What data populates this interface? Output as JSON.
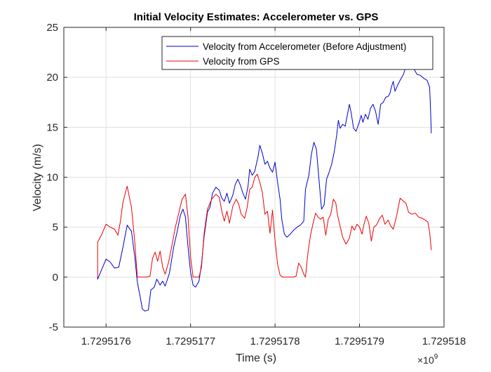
{
  "chart_data": {
    "type": "line",
    "title": "Initial Velocity Estimates: Accelerometer vs. GPS",
    "xlabel": "Time (s)",
    "ylabel": "Velocity (m/s)",
    "x_exponent_label": "×10",
    "x_exponent_power": "9",
    "xlim": [
      1.72951755,
      1.729518
    ],
    "ylim": [
      -5,
      25
    ],
    "xticks": [
      1.7295176,
      1.7295177,
      1.7295178,
      1.7295179,
      1.729518
    ],
    "xtick_labels": [
      "1.7295176",
      "1.7295177",
      "1.7295178",
      "1.7295179",
      "1.729518"
    ],
    "yticks": [
      -5,
      0,
      5,
      10,
      15,
      20,
      25
    ],
    "ytick_labels": [
      "-5",
      "0",
      "5",
      "10",
      "15",
      "20",
      "25"
    ],
    "grid": true,
    "legend_position": "top-right",
    "series": [
      {
        "name": "Velocity from Accelerometer (Before Adjustment)",
        "color": "#0000cc",
        "points": [
          [
            1.72951759,
            0
          ],
          [
            1.72951759,
            -0.2
          ],
          [
            1.729517595,
            0.8
          ],
          [
            1.7295176,
            1.8
          ],
          [
            1.729517605,
            1.5
          ],
          [
            1.72951761,
            0.9
          ],
          [
            1.729517615,
            1.0
          ],
          [
            1.72951762,
            3.0
          ],
          [
            1.729517625,
            5.2
          ],
          [
            1.72951763,
            4.6
          ],
          [
            1.729517634,
            2.0
          ],
          [
            1.729517637,
            -0.5
          ],
          [
            1.72951764,
            -1.8
          ],
          [
            1.729517643,
            -3.2
          ],
          [
            1.729517646,
            -3.4
          ],
          [
            1.72951765,
            -3.3
          ],
          [
            1.729517653,
            -1.3
          ],
          [
            1.729517657,
            -1.0
          ],
          [
            1.72951766,
            -0.2
          ],
          [
            1.729517664,
            -0.8
          ],
          [
            1.729517667,
            -0.4
          ],
          [
            1.72951767,
            -0.9
          ],
          [
            1.729517675,
            0.4
          ],
          [
            1.72951768,
            3.0
          ],
          [
            1.729517684,
            4.5
          ],
          [
            1.729517688,
            6.2
          ],
          [
            1.729517691,
            6.8
          ],
          [
            1.729517694,
            6.0
          ],
          [
            1.729517697,
            3.0
          ],
          [
            1.7295177,
            0.5
          ],
          [
            1.729517703,
            -0.8
          ],
          [
            1.729517706,
            -1.0
          ],
          [
            1.72951771,
            -0.4
          ],
          [
            1.729517713,
            1.3
          ],
          [
            1.729517716,
            4.0
          ],
          [
            1.72951772,
            6.5
          ],
          [
            1.729517723,
            7.0
          ],
          [
            1.729517726,
            8.4
          ],
          [
            1.72951773,
            9.0
          ],
          [
            1.729517734,
            8.7
          ],
          [
            1.729517737,
            7.9
          ],
          [
            1.72951774,
            7.6
          ],
          [
            1.729517743,
            8.4
          ],
          [
            1.729517746,
            7.4
          ],
          [
            1.72951775,
            8.2
          ],
          [
            1.729517753,
            9.3
          ],
          [
            1.729517756,
            9.8
          ],
          [
            1.729517759,
            9.2
          ],
          [
            1.729517762,
            8.4
          ],
          [
            1.729517765,
            7.8
          ],
          [
            1.729517768,
            9.1
          ],
          [
            1.72951777,
            10.8
          ],
          [
            1.729517773,
            10.2
          ],
          [
            1.729517776,
            10.6
          ],
          [
            1.72951778,
            12.1
          ],
          [
            1.729517782,
            13.2
          ],
          [
            1.729517785,
            12.4
          ],
          [
            1.729517788,
            11.3
          ],
          [
            1.729517791,
            11.6
          ],
          [
            1.729517794,
            10.9
          ],
          [
            1.729517797,
            10.5
          ],
          [
            1.7295178,
            11.5
          ],
          [
            1.729517803,
            9.5
          ],
          [
            1.729517806,
            7.8
          ],
          [
            1.729517808,
            5.8
          ],
          [
            1.729517811,
            4.3
          ],
          [
            1.729517814,
            4.0
          ],
          [
            1.729517818,
            4.3
          ],
          [
            1.729517822,
            4.7
          ],
          [
            1.729517826,
            5.0
          ],
          [
            1.72951783,
            5.2
          ],
          [
            1.729517834,
            5.6
          ],
          [
            1.729517836,
            8.8
          ],
          [
            1.72951784,
            10.2
          ],
          [
            1.729517843,
            12.3
          ],
          [
            1.729517846,
            13.5
          ],
          [
            1.729517849,
            12.8
          ],
          [
            1.729517852,
            9.8
          ],
          [
            1.729517855,
            6.8
          ],
          [
            1.729517858,
            7.2
          ],
          [
            1.729517861,
            9.8
          ],
          [
            1.729517864,
            10.5
          ],
          [
            1.729517867,
            11.3
          ],
          [
            1.72951787,
            12.5
          ],
          [
            1.729517873,
            14.2
          ],
          [
            1.729517875,
            15.7
          ],
          [
            1.729517877,
            14.9
          ],
          [
            1.72951788,
            15.3
          ],
          [
            1.729517883,
            15.1
          ],
          [
            1.729517886,
            16.4
          ],
          [
            1.729517888,
            17.3
          ],
          [
            1.72951789,
            16.5
          ],
          [
            1.729517893,
            14.9
          ],
          [
            1.729517896,
            14.6
          ],
          [
            1.7295179,
            15.6
          ],
          [
            1.729517902,
            16.2
          ],
          [
            1.729517904,
            15.5
          ],
          [
            1.729517907,
            16.3
          ],
          [
            1.72951791,
            15.8
          ],
          [
            1.729517913,
            16.9
          ],
          [
            1.729517916,
            17.3
          ],
          [
            1.729517919,
            16.6
          ],
          [
            1.729517922,
            15.3
          ],
          [
            1.729517925,
            17.3
          ],
          [
            1.729517928,
            17.5
          ],
          [
            1.729517931,
            18.0
          ],
          [
            1.729517934,
            18.1
          ],
          [
            1.729517936,
            18.4
          ],
          [
            1.729517938,
            19.1
          ],
          [
            1.72951794,
            19.6
          ],
          [
            1.729517942,
            18.6
          ],
          [
            1.729517945,
            19.2
          ],
          [
            1.729517948,
            19.7
          ],
          [
            1.729517952,
            20.3
          ],
          [
            1.729517955,
            21.1
          ],
          [
            1.729517958,
            20.8
          ],
          [
            1.729517961,
            21.2
          ],
          [
            1.729517964,
            20.9
          ],
          [
            1.729517968,
            20.3
          ],
          [
            1.729517972,
            20.2
          ],
          [
            1.729517976,
            19.9
          ],
          [
            1.72951798,
            19.7
          ],
          [
            1.729517983,
            19.0
          ],
          [
            1.729517984,
            17.0
          ],
          [
            1.729517985,
            14.4
          ]
        ]
      },
      {
        "name": "Velocity from GPS",
        "color": "#ee0000",
        "points": [
          [
            1.72951759,
            0
          ],
          [
            1.72951759,
            3.5
          ],
          [
            1.729517595,
            4.3
          ],
          [
            1.7295176,
            5.3
          ],
          [
            1.729517605,
            5.0
          ],
          [
            1.72951761,
            4.8
          ],
          [
            1.729517614,
            4.2
          ],
          [
            1.729517617,
            5.6
          ],
          [
            1.72951762,
            7.5
          ],
          [
            1.729517625,
            9.1
          ],
          [
            1.72951763,
            7.0
          ],
          [
            1.729517634,
            3.5
          ],
          [
            1.729517637,
            0
          ],
          [
            1.72951764,
            0
          ],
          [
            1.729517648,
            0
          ],
          [
            1.729517652,
            0.1
          ],
          [
            1.729517655,
            1.9
          ],
          [
            1.729517658,
            2.5
          ],
          [
            1.729517661,
            1.6
          ],
          [
            1.729517664,
            2.6
          ],
          [
            1.729517667,
            1.0
          ],
          [
            1.72951767,
            0.3
          ],
          [
            1.729517674,
            1.5
          ],
          [
            1.729517678,
            3.2
          ],
          [
            1.729517682,
            5.0
          ],
          [
            1.729517686,
            6.4
          ],
          [
            1.72951769,
            7.8
          ],
          [
            1.729517694,
            8.3
          ],
          [
            1.729517697,
            6.0
          ],
          [
            1.7295177,
            2.0
          ],
          [
            1.729517703,
            0
          ],
          [
            1.72951771,
            0
          ],
          [
            1.729517713,
            1.0
          ],
          [
            1.729517716,
            4.3
          ],
          [
            1.72951772,
            6.8
          ],
          [
            1.729517725,
            7.8
          ],
          [
            1.72951773,
            8.3
          ],
          [
            1.729517734,
            8.0
          ],
          [
            1.729517737,
            6.6
          ],
          [
            1.72951774,
            5.6
          ],
          [
            1.729517743,
            6.6
          ],
          [
            1.729517746,
            5.4
          ],
          [
            1.72951775,
            7.1
          ],
          [
            1.729517754,
            7.8
          ],
          [
            1.729517757,
            7.3
          ],
          [
            1.72951776,
            6.3
          ],
          [
            1.729517764,
            5.9
          ],
          [
            1.729517767,
            7.0
          ],
          [
            1.72951777,
            8.8
          ],
          [
            1.729517773,
            9.0
          ],
          [
            1.729517776,
            10.0
          ],
          [
            1.729517779,
            10.3
          ],
          [
            1.729517782,
            9.5
          ],
          [
            1.729517785,
            8.5
          ],
          [
            1.729517788,
            6.3
          ],
          [
            1.729517791,
            6.6
          ],
          [
            1.729517794,
            4.4
          ],
          [
            1.729517797,
            6.7
          ],
          [
            1.7295178,
            3.7
          ],
          [
            1.729517803,
            1.3
          ],
          [
            1.729517806,
            0.2
          ],
          [
            1.729517809,
            0
          ],
          [
            1.729517822,
            0
          ],
          [
            1.729517825,
            0.1
          ],
          [
            1.729517828,
            1.4
          ],
          [
            1.729517831,
            1.0
          ],
          [
            1.729517834,
            0.3
          ],
          [
            1.729517836,
            0
          ],
          [
            1.729517839,
            2.5
          ],
          [
            1.729517842,
            4.2
          ],
          [
            1.729517845,
            5.4
          ],
          [
            1.729517848,
            6.4
          ],
          [
            1.729517851,
            6.0
          ],
          [
            1.729517854,
            5.8
          ],
          [
            1.729517857,
            6.0
          ],
          [
            1.72951786,
            4.2
          ],
          [
            1.729517863,
            5.8
          ],
          [
            1.729517866,
            6.3
          ],
          [
            1.729517869,
            7.8
          ],
          [
            1.729517872,
            7.4
          ],
          [
            1.729517874,
            6.2
          ],
          [
            1.729517877,
            5.1
          ],
          [
            1.72951788,
            4.0
          ],
          [
            1.729517884,
            3.3
          ],
          [
            1.729517888,
            3.9
          ],
          [
            1.729517891,
            5.1
          ],
          [
            1.729517894,
            4.7
          ],
          [
            1.729517897,
            5.3
          ],
          [
            1.7295179,
            5.0
          ],
          [
            1.729517903,
            4.3
          ],
          [
            1.729517905,
            5.2
          ],
          [
            1.729517908,
            6.1
          ],
          [
            1.729517911,
            5.4
          ],
          [
            1.729517914,
            3.6
          ],
          [
            1.729517917,
            5.0
          ],
          [
            1.72951792,
            5.2
          ],
          [
            1.729517924,
            5.9
          ],
          [
            1.729517927,
            6.2
          ],
          [
            1.72951793,
            5.3
          ],
          [
            1.729517934,
            5.7
          ],
          [
            1.729517937,
            5.1
          ],
          [
            1.72951794,
            4.8
          ],
          [
            1.729517944,
            6.2
          ],
          [
            1.729517948,
            7.9
          ],
          [
            1.729517952,
            7.6
          ],
          [
            1.729517955,
            7.4
          ],
          [
            1.729517958,
            6.5
          ],
          [
            1.729517962,
            6.3
          ],
          [
            1.729517966,
            6.4
          ],
          [
            1.72951797,
            6.0
          ],
          [
            1.729517974,
            5.9
          ],
          [
            1.729517978,
            5.7
          ],
          [
            1.729517981,
            5.5
          ],
          [
            1.729517983,
            4.5
          ],
          [
            1.729517985,
            2.7
          ]
        ]
      }
    ]
  }
}
